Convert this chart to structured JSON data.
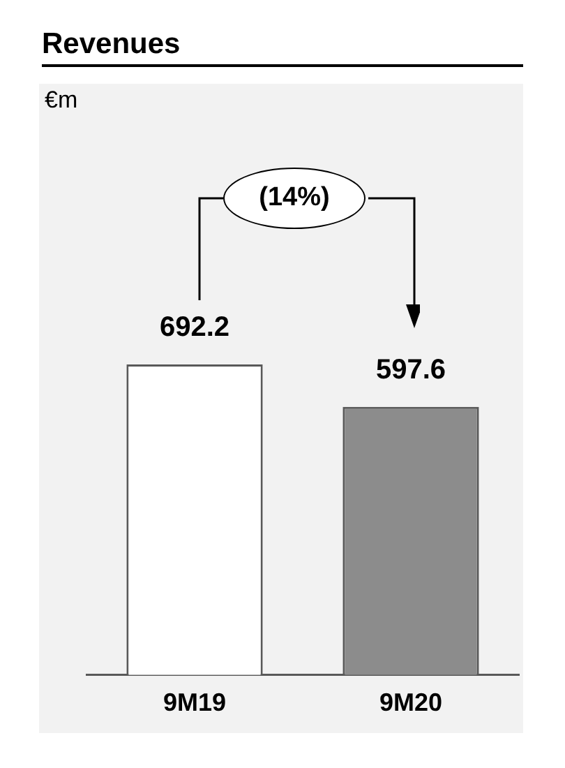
{
  "chart_data": {
    "type": "bar",
    "title": "Revenues",
    "categories": [
      "9M19",
      "9M20"
    ],
    "values": [
      692.2,
      597.6
    ],
    "colors": [
      "#ffffff",
      "#8c8c8c"
    ],
    "data_labels": true,
    "annotations": [
      "€m",
      "(14%)"
    ],
    "legend": false,
    "grid": false
  }
}
